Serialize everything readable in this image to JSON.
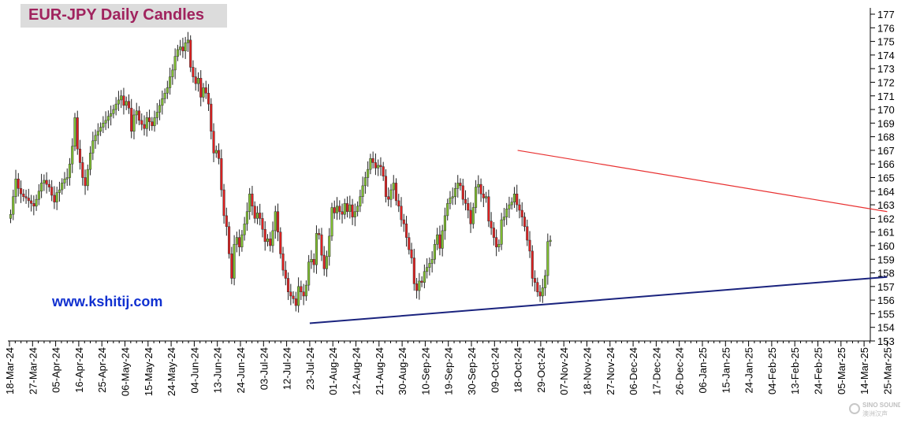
{
  "chart_data": {
    "type": "candlestick",
    "title": "EUR-JPY Daily  Candles",
    "annotation": "www.kshitij.com",
    "xlabel": "",
    "ylabel": "",
    "ylim": [
      153,
      177
    ],
    "yticks": [
      153,
      154,
      155,
      156,
      157,
      158,
      159,
      160,
      161,
      162,
      163,
      164,
      165,
      166,
      167,
      168,
      169,
      170,
      171,
      172,
      173,
      174,
      175,
      176,
      177
    ],
    "xticks": [
      "18-Mar-24",
      "27-Mar-24",
      "05-Apr-24",
      "16-Apr-24",
      "25-Apr-24",
      "06-May-24",
      "15-May-24",
      "24-May-24",
      "04-Jun-24",
      "13-Jun-24",
      "24-Jun-24",
      "03-Jul-24",
      "12-Jul-24",
      "23-Jul-24",
      "01-Aug-24",
      "12-Aug-24",
      "21-Aug-24",
      "30-Aug-24",
      "10-Sep-24",
      "19-Sep-24",
      "30-Sep-24",
      "09-Oct-24",
      "18-Oct-24",
      "29-Oct-24",
      "07-Nov-24",
      "18-Nov-24",
      "27-Nov-24",
      "06-Dec-24",
      "17-Dec-24",
      "26-Dec-24",
      "06-Jan-25",
      "15-Jan-25",
      "24-Jan-25",
      "04-Feb-25",
      "13-Feb-25",
      "24-Feb-25",
      "05-Mar-25",
      "14-Mar-25",
      "25-Mar-25"
    ],
    "colors": {
      "up": "#80c030",
      "down": "#e02020",
      "resistance": "#e83030",
      "support": "#1a237e",
      "title": "#a0235e",
      "annotation": "#1030d0"
    },
    "closes": [
      162.3,
      163.6,
      164.9,
      164.2,
      163.8,
      163.6,
      163.5,
      163.3,
      163.1,
      162.9,
      163.4,
      164.0,
      164.6,
      164.8,
      164.5,
      164.3,
      163.7,
      163.2,
      163.9,
      164.1,
      164.6,
      164.9,
      165.0,
      166.0,
      167.3,
      169.4,
      167.1,
      166.1,
      165.0,
      164.4,
      165.6,
      166.8,
      167.7,
      168.1,
      168.4,
      168.7,
      169.0,
      169.2,
      169.5,
      169.7,
      170.0,
      170.4,
      170.7,
      171.0,
      170.3,
      170.6,
      170.1,
      168.4,
      169.6,
      169.9,
      169.2,
      168.9,
      168.6,
      169.4,
      169.1,
      168.8,
      169.4,
      169.8,
      170.3,
      170.8,
      171.2,
      171.6,
      172.4,
      172.9,
      173.9,
      174.4,
      174.6,
      174.3,
      174.9,
      175.1,
      173.1,
      172.4,
      171.9,
      172.3,
      170.9,
      171.6,
      171.2,
      170.4,
      168.4,
      166.8,
      167.0,
      166.4,
      164.1,
      162.2,
      161.4,
      159.4,
      157.6,
      160.1,
      160.6,
      159.9,
      160.8,
      161.6,
      162.5,
      163.8,
      162.9,
      162.0,
      162.4,
      162.0,
      161.2,
      160.3,
      160.5,
      160.0,
      161.1,
      162.5,
      161.0,
      159.4,
      158.2,
      157.6,
      156.6,
      156.3,
      156.1,
      155.6,
      157.0,
      156.6,
      156.3,
      157.1,
      158.8,
      159.0,
      158.6,
      160.9,
      160.8,
      159.3,
      158.3,
      159.2,
      160.7,
      162.8,
      162.4,
      162.9,
      162.5,
      162.3,
      163.1,
      162.5,
      163.0,
      162.1,
      162.5,
      162.9,
      163.6,
      164.4,
      165.0,
      165.6,
      166.4,
      166.1,
      165.7,
      165.9,
      165.8,
      165.1,
      163.6,
      163.4,
      164.1,
      164.6,
      163.3,
      162.9,
      161.9,
      161.6,
      160.6,
      159.7,
      159.1,
      157.2,
      156.7,
      157.4,
      157.3,
      158.1,
      158.4,
      158.7,
      159.0,
      160.1,
      160.8,
      159.8,
      161.1,
      162.2,
      163.1,
      163.5,
      163.6,
      164.2,
      164.6,
      164.4,
      163.4,
      163.1,
      162.6,
      161.6,
      162.8,
      164.3,
      164.5,
      163.8,
      163.5,
      163.6,
      161.8,
      161.3,
      160.6,
      159.9,
      160.1,
      161.9,
      162.1,
      162.7,
      163.0,
      163.2,
      163.8,
      163.0,
      162.6,
      162.1,
      161.4,
      160.4,
      159.6,
      157.6,
      157.3,
      156.6,
      156.3,
      156.9,
      157.8,
      160.3,
      160.4
    ],
    "supportLine": {
      "start": [
        "23-Jul-24",
        154.3
      ],
      "end": [
        "25-Mar-25",
        157.7
      ]
    },
    "resistanceLine": {
      "start": [
        "18-Oct-24",
        167.0
      ],
      "end": [
        "25-Mar-25",
        162.5
      ]
    }
  },
  "watermark": {
    "line1": "SINO SOUND",
    "line2": "澳洲汉声"
  }
}
